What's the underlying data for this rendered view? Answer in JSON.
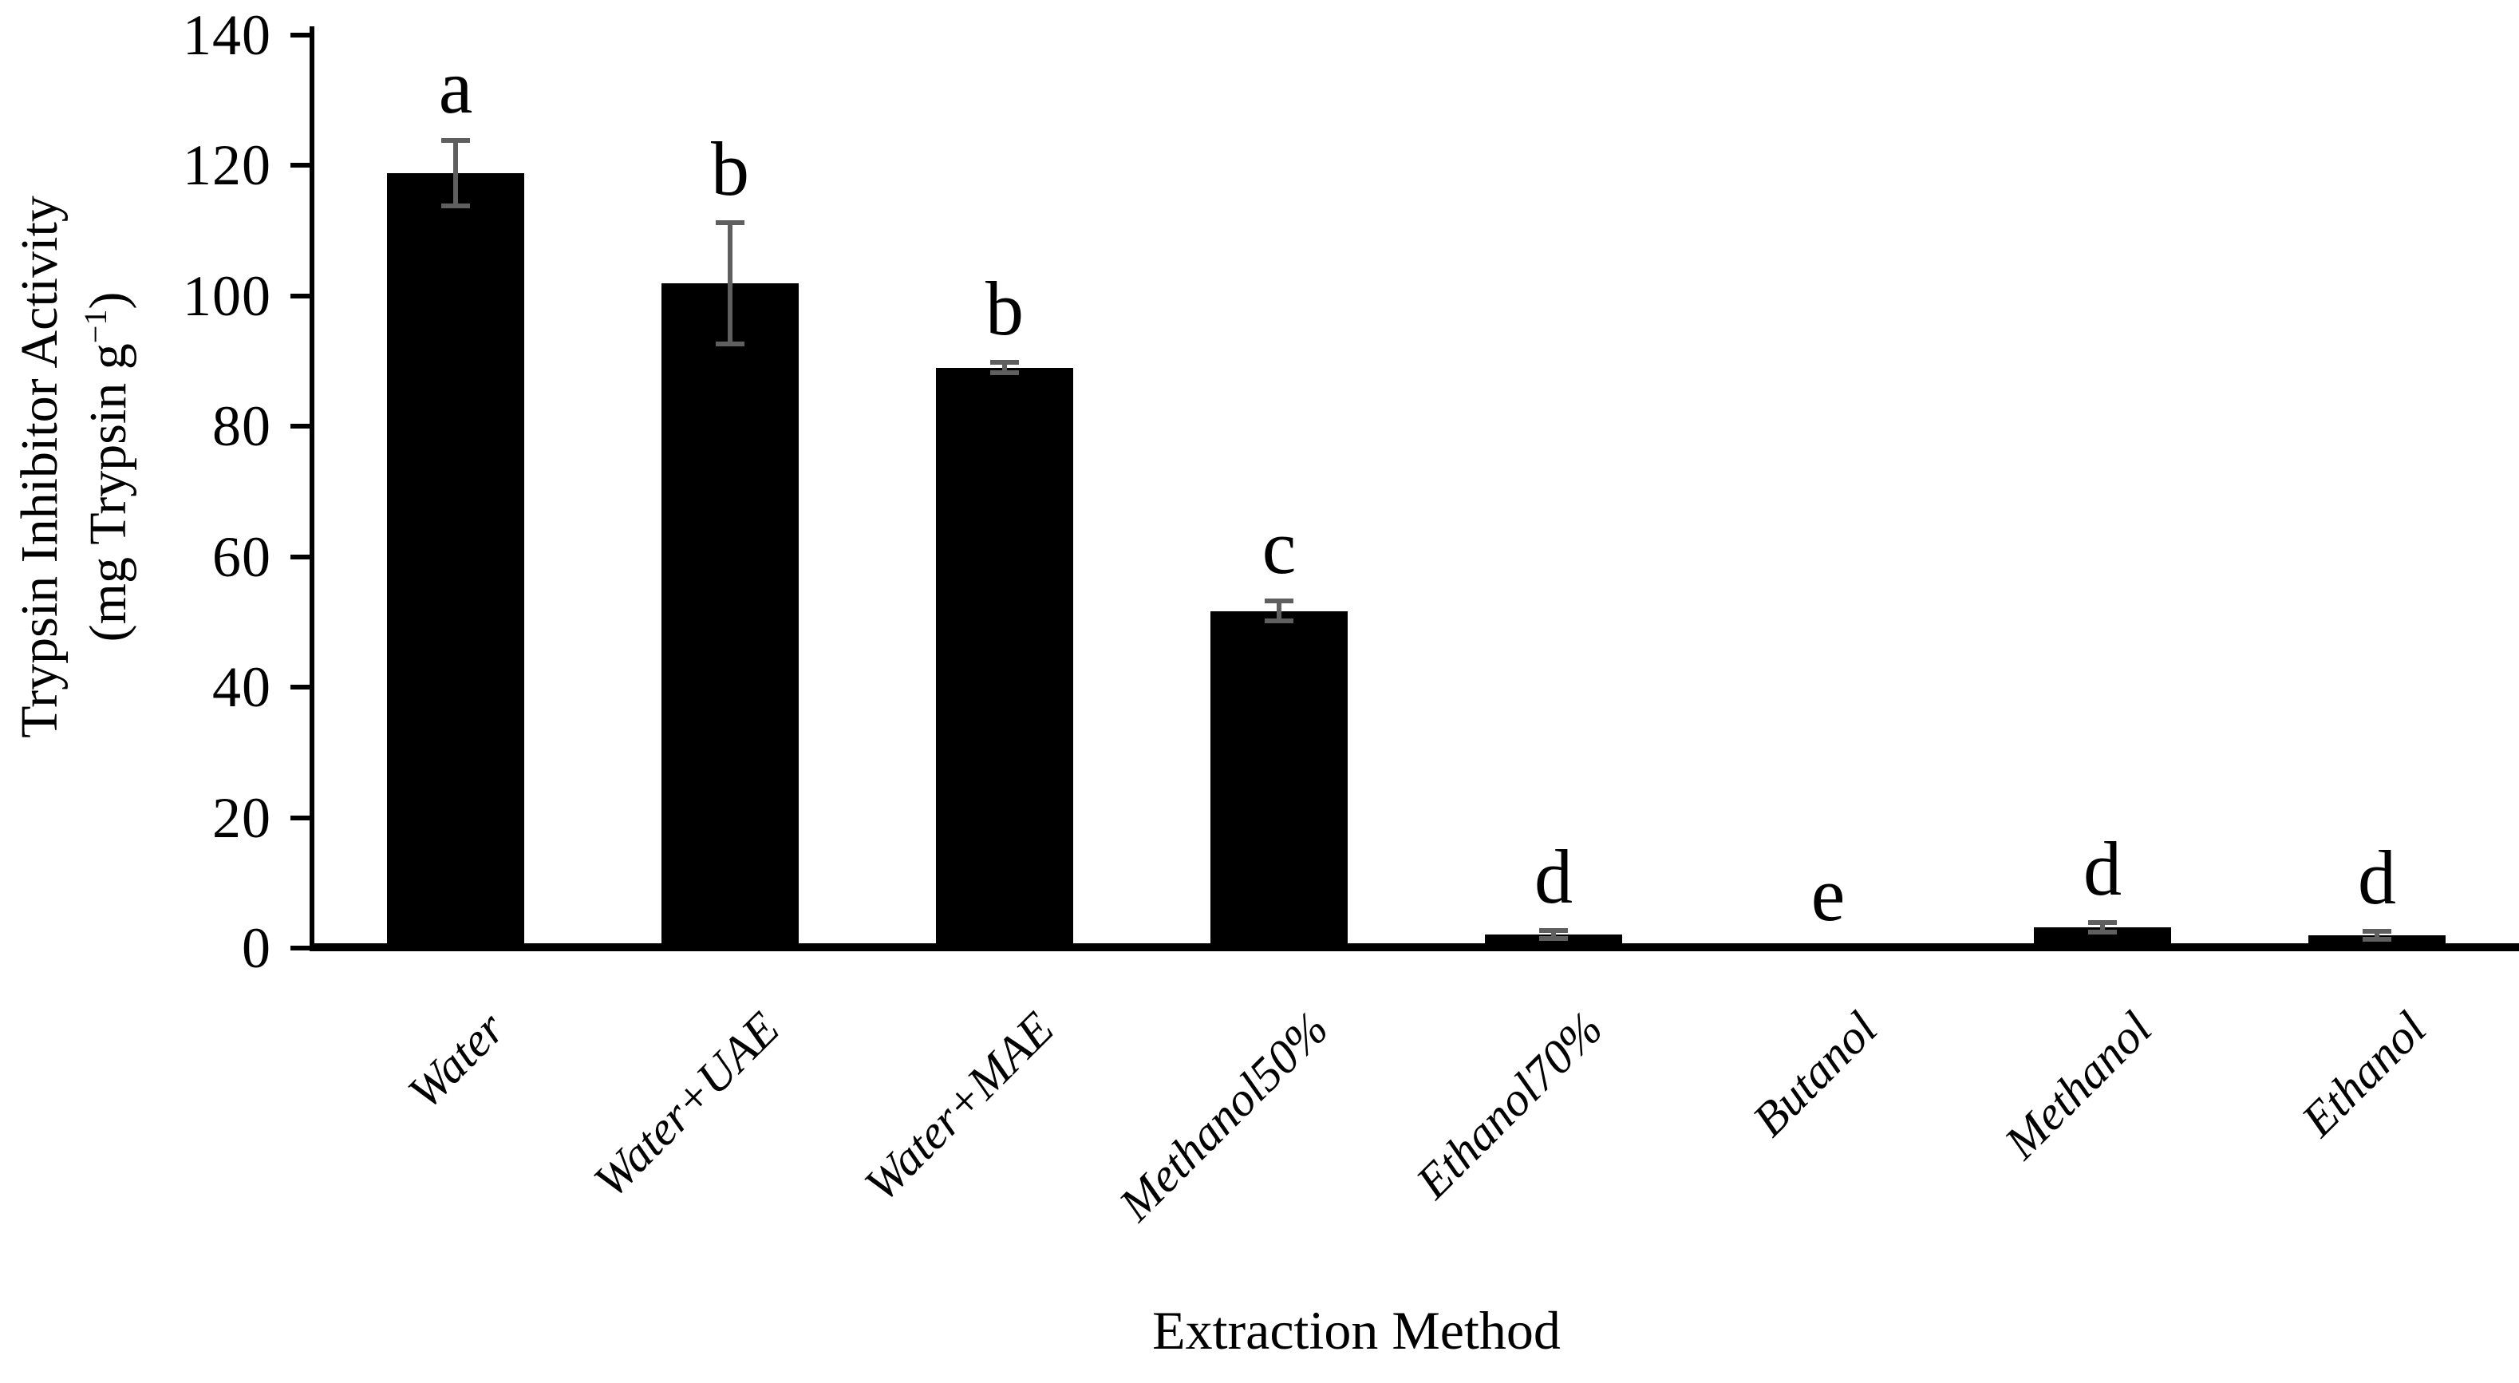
{
  "chart_data": {
    "type": "bar",
    "title": "",
    "xlabel": "Extraction Method",
    "ylabel_line1": "Trypsin Inhibitor Activity",
    "ylabel_line2_pre": "(mg Trypsin g",
    "ylabel_line2_sup": "−1",
    "ylabel_line2_post": ")",
    "ylim": [
      0,
      140
    ],
    "ytick_step": 20,
    "yticks": [
      0,
      20,
      40,
      60,
      80,
      100,
      120,
      140
    ],
    "grid": false,
    "legend": "none",
    "bar_color": "#000000",
    "error_bar_color": "#5f5f5f",
    "text_color": "#000000",
    "categories": [
      "Water",
      "Water+UAE",
      "Water+MAE",
      "Methanol50%",
      "Ethanol70%",
      "Butanol",
      "Methanol",
      "Ethanol"
    ],
    "values": [
      118.8,
      102,
      89,
      51.7,
      2.1,
      0,
      3.2,
      2.0
    ],
    "errors": [
      5,
      9.3,
      0.8,
      1.5,
      0.6,
      0,
      0.7,
      0.6
    ],
    "significance_letters": [
      "a",
      "b",
      "b",
      "c",
      "d",
      "e",
      "d",
      "d"
    ]
  }
}
